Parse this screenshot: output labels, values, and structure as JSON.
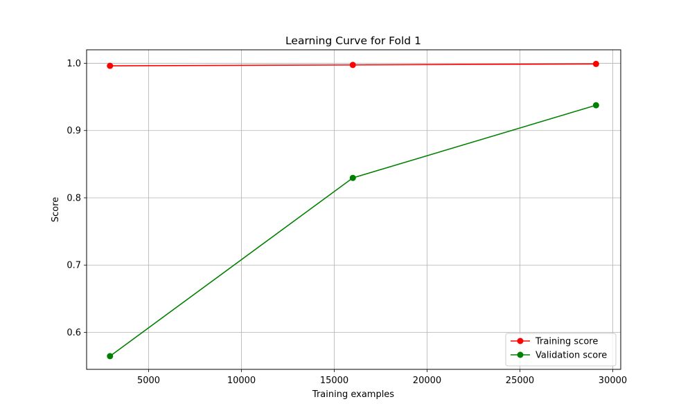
{
  "chart_data": {
    "type": "line",
    "title": "Learning Curve for Fold 1",
    "xlabel": "Training examples",
    "ylabel": "Score",
    "xlim": [
      1660,
      30430
    ],
    "ylim": [
      0.545,
      1.02
    ],
    "xticks": [
      5000,
      10000,
      15000,
      20000,
      25000,
      30000
    ],
    "yticks": [
      0.6,
      0.7,
      0.8,
      0.9,
      1.0
    ],
    "grid": true,
    "legend_position": "lower right",
    "x": [
      2920,
      16000,
      29100
    ],
    "series": [
      {
        "name": "Training score",
        "color": "#ff0000",
        "marker": "circle",
        "values": [
          0.9962,
          0.9975,
          0.999
        ]
      },
      {
        "name": "Validation score",
        "color": "#008000",
        "marker": "circle",
        "values": [
          0.5646,
          0.8296,
          0.9376
        ]
      }
    ]
  }
}
